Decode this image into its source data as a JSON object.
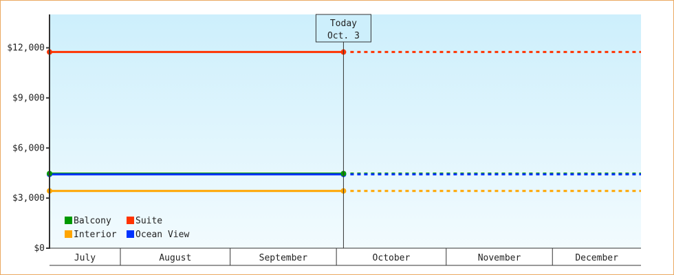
{
  "chart_data": {
    "type": "line",
    "title": "",
    "xlabel": "",
    "ylabel": "",
    "ylim": [
      0,
      14000
    ],
    "y_ticks": [
      0,
      3000,
      6000,
      9000,
      12000
    ],
    "y_tick_labels": [
      "$0",
      "$3,000",
      "$6,000",
      "$9,000",
      "$12,000"
    ],
    "x_range": [
      "Jul 12",
      "Dec 25"
    ],
    "x_month_labels": [
      "July",
      "August",
      "September",
      "October",
      "November",
      "December"
    ],
    "grid": false,
    "legend_position": "bottom-left",
    "today_marker": {
      "line1": "Today",
      "line2": "Oct. 3",
      "date": "Oct 3"
    },
    "series": [
      {
        "name": "Balcony",
        "color": "#009900",
        "points": [
          [
            "Jul 12",
            4470
          ],
          [
            "Oct 3",
            4470
          ]
        ],
        "projection_to": "Dec 25"
      },
      {
        "name": "Suite",
        "color": "#ff3300",
        "points": [
          [
            "Jul 12",
            11750
          ],
          [
            "Oct 3",
            11750
          ]
        ],
        "projection_to": "Dec 25"
      },
      {
        "name": "Interior",
        "color": "#ffa500",
        "points": [
          [
            "Jul 12",
            3430
          ],
          [
            "Oct 3",
            3430
          ]
        ],
        "projection_to": "Dec 25"
      },
      {
        "name": "Ocean View",
        "color": "#0033ff",
        "points": [
          [
            "Jul 12",
            4420
          ],
          [
            "Oct 3",
            4420
          ]
        ],
        "projection_to": "Dec 25"
      }
    ]
  }
}
